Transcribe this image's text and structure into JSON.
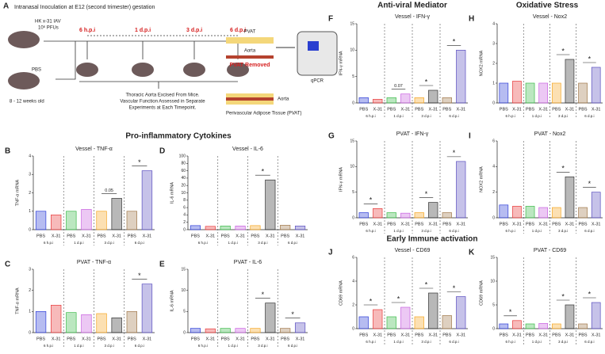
{
  "panel_a": {
    "letter": "A",
    "intro": "Intranasal Inoculation at E12 (second trimester) gestation",
    "virus": "HK x-31 IAV",
    "dose": "10⁶ PFUs",
    "control": "PBS",
    "age": "8 - 12 weeks old",
    "timepoints": [
      "6 h.p.i",
      "1 d.p.i",
      "3 d.p.i",
      "6 d.p.i"
    ],
    "method": [
      "Thoracic Aorta Excised From Mice.",
      "Vascular Function Assessed in Separate",
      "Experiments at Each Timepoint."
    ],
    "tissue_pvat": "PVAT",
    "tissue_aorta": "Aorta",
    "pvat_removed": "PVAT Removed",
    "assay": "qPCR",
    "aorta_label": "Aorta",
    "pvat_label": "Perivascular Adipose Tissue (PVAT)"
  },
  "section_headers": [
    "Pro-inflammatory Cytokines",
    "Anti-viral Mediator",
    "Oxidative Stress",
    "Early Immune activation"
  ],
  "chart_data": [
    {
      "type": "bar",
      "panel": "B",
      "title": "Vessel - TNF-α",
      "ylabel": "TNF-α mRNA",
      "categories": [
        "PBS",
        "X-31",
        "PBS",
        "X-31",
        "PBS",
        "X-31",
        "PBS",
        "X-31"
      ],
      "groups": [
        "6 h.p.i",
        "1 d.p.i",
        "3 d.p.i",
        "6 d.p.i"
      ],
      "values": [
        1.0,
        0.8,
        1.0,
        1.1,
        1.0,
        1.7,
        1.0,
        3.2
      ],
      "colors": [
        "#2f3fd8",
        "#e8393a",
        "#3dbb4a",
        "#c860e0",
        "#f5a623",
        "#333333",
        "#a0784a",
        "#5b4fc0"
      ],
      "ylim": [
        0,
        4
      ],
      "yticks": [
        0,
        1,
        2,
        3,
        4
      ],
      "annotations": [
        {
          "text": "0.05",
          "group": "3 d.p.i"
        },
        {
          "text": "*",
          "group": "6 d.p.i"
        }
      ]
    },
    {
      "type": "bar",
      "panel": "D",
      "title": "Vessel - IL-6",
      "ylabel": "IL-6 mRNA",
      "categories": [
        "PBS",
        "X-31",
        "PBS",
        "X-31",
        "PBS",
        "X-31",
        "PBS",
        "X-31"
      ],
      "groups": [
        "6 h.p.i",
        "1 d.p.i",
        "3 d.p.i",
        "6 d.p.i"
      ],
      "values": [
        1.1,
        0.9,
        1.0,
        1.0,
        1.1,
        35,
        1.2,
        1.0
      ],
      "colors": [
        "#2f3fd8",
        "#e8393a",
        "#3dbb4a",
        "#c860e0",
        "#f5a623",
        "#333333",
        "#a0784a",
        "#5b4fc0"
      ],
      "ylim": [
        0,
        100
      ],
      "yticks": [
        0,
        2,
        4,
        6,
        8,
        10,
        20,
        40,
        60,
        80,
        100
      ],
      "annotations": [
        {
          "text": "*",
          "group": "3 d.p.i"
        }
      ]
    },
    {
      "type": "bar",
      "panel": "C",
      "title": "PVAT - TNF-α",
      "ylabel": "TNF-α mRNA",
      "categories": [
        "PBS",
        "X-31",
        "PBS",
        "X-31",
        "PBS",
        "X-31",
        "PBS",
        "X-31"
      ],
      "groups": [
        "6 h.p.i",
        "1 d.p.i",
        "3 d.p.i",
        "6 d.p.i"
      ],
      "values": [
        1.0,
        1.3,
        0.95,
        0.85,
        0.9,
        0.7,
        1.0,
        2.3
      ],
      "colors": [
        "#2f3fd8",
        "#e8393a",
        "#3dbb4a",
        "#c860e0",
        "#f5a623",
        "#333333",
        "#a0784a",
        "#5b4fc0"
      ],
      "ylim": [
        0,
        3
      ],
      "yticks": [
        0,
        1,
        2,
        3
      ],
      "annotations": [
        {
          "text": "*",
          "group": "6 d.p.i"
        }
      ]
    },
    {
      "type": "bar",
      "panel": "E",
      "title": "PVAT - IL-6",
      "ylabel": "IL-6 mRNA",
      "categories": [
        "PBS",
        "X-31",
        "PBS",
        "X-31",
        "PBS",
        "X-31",
        "PBS",
        "X-31"
      ],
      "groups": [
        "6 h.p.i",
        "1 d.p.i",
        "3 d.p.i",
        "6 d.p.i"
      ],
      "values": [
        1.0,
        0.9,
        1.0,
        1.0,
        1.0,
        7.0,
        1.0,
        2.3
      ],
      "colors": [
        "#2f3fd8",
        "#e8393a",
        "#3dbb4a",
        "#c860e0",
        "#f5a623",
        "#333333",
        "#a0784a",
        "#5b4fc0"
      ],
      "ylim": [
        0,
        15
      ],
      "yticks": [
        0,
        5,
        10,
        15
      ],
      "annotations": [
        {
          "text": "*",
          "group": "3 d.p.i"
        },
        {
          "text": "*",
          "group": "6 d.p.i"
        }
      ]
    },
    {
      "type": "bar",
      "panel": "F",
      "title": "Vessel - IFN-γ",
      "ylabel": "IFN-γ mRNA",
      "categories": [
        "PBS",
        "X-31",
        "PBS",
        "X-31",
        "PBS",
        "X-31",
        "PBS",
        "X-31"
      ],
      "groups": [
        "6 h.p.i",
        "1 d.p.i",
        "3 d.p.i",
        "6 d.p.i"
      ],
      "values": [
        1.0,
        0.7,
        1.0,
        1.7,
        1.0,
        2.4,
        1.0,
        10
      ],
      "colors": [
        "#2f3fd8",
        "#e8393a",
        "#3dbb4a",
        "#c860e0",
        "#f5a623",
        "#333333",
        "#a0784a",
        "#5b4fc0"
      ],
      "ylim": [
        0,
        15
      ],
      "yticks": [
        0,
        5,
        10,
        15
      ],
      "annotations": [
        {
          "text": "0.07",
          "group": "1 d.p.i"
        },
        {
          "text": "*",
          "group": "3 d.p.i"
        },
        {
          "text": "*",
          "group": "6 d.p.i"
        }
      ]
    },
    {
      "type": "bar",
      "panel": "H",
      "title": "Vessel - Nox2",
      "ylabel": "NOX2 mRNA",
      "categories": [
        "PBS",
        "X-31",
        "PBS",
        "X-31",
        "PBS",
        "X-31",
        "PBS",
        "X-31"
      ],
      "groups": [
        "6 h.p.i",
        "1 d.p.i",
        "3 d.p.i",
        "6 d.p.i"
      ],
      "values": [
        1.0,
        1.1,
        1.0,
        1.0,
        1.0,
        2.2,
        1.0,
        1.8
      ],
      "colors": [
        "#2f3fd8",
        "#e8393a",
        "#3dbb4a",
        "#c860e0",
        "#f5a623",
        "#333333",
        "#a0784a",
        "#5b4fc0"
      ],
      "ylim": [
        0,
        4
      ],
      "yticks": [
        0,
        1,
        2,
        3,
        4
      ],
      "annotations": [
        {
          "text": "*",
          "group": "3 d.p.i"
        },
        {
          "text": "*",
          "group": "6 d.p.i"
        }
      ]
    },
    {
      "type": "bar",
      "panel": "G",
      "title": "PVAT - IFN-γ",
      "ylabel": "IFN-γ mRNA",
      "categories": [
        "PBS",
        "X-31",
        "PBS",
        "X-31",
        "PBS",
        "X-31",
        "PBS",
        "X-31"
      ],
      "groups": [
        "6 h.p.i",
        "1 d.p.i",
        "3 d.p.i",
        "6 d.p.i"
      ],
      "values": [
        1.0,
        1.8,
        1.0,
        0.9,
        1.0,
        3.0,
        1.0,
        11
      ],
      "colors": [
        "#2f3fd8",
        "#e8393a",
        "#3dbb4a",
        "#c860e0",
        "#f5a623",
        "#333333",
        "#a0784a",
        "#5b4fc0"
      ],
      "ylim": [
        0,
        15
      ],
      "yticks": [
        0,
        5,
        10,
        15
      ],
      "annotations": [
        {
          "text": "*",
          "group": "6 h.p.i"
        },
        {
          "text": "*",
          "group": "3 d.p.i"
        },
        {
          "text": "*",
          "group": "6 d.p.i"
        }
      ]
    },
    {
      "type": "bar",
      "panel": "I",
      "title": "PVAT - Nox2",
      "ylabel": "NOX2 mRNA",
      "categories": [
        "PBS",
        "X-31",
        "PBS",
        "X-31",
        "PBS",
        "X-31",
        "PBS",
        "X-31"
      ],
      "groups": [
        "6 h.p.i",
        "1 d.p.i",
        "3 d.p.i",
        "6 d.p.i"
      ],
      "values": [
        1.0,
        0.9,
        0.9,
        0.8,
        0.8,
        3.2,
        0.8,
        2.0
      ],
      "colors": [
        "#2f3fd8",
        "#e8393a",
        "#3dbb4a",
        "#c860e0",
        "#f5a623",
        "#333333",
        "#a0784a",
        "#5b4fc0"
      ],
      "ylim": [
        0,
        6
      ],
      "yticks": [
        0,
        2,
        4,
        6
      ],
      "annotations": [
        {
          "text": "*",
          "group": "3 d.p.i"
        },
        {
          "text": "*",
          "group": "6 d.p.i"
        }
      ]
    },
    {
      "type": "bar",
      "panel": "J",
      "title": "Vessel - CD69",
      "ylabel": "CD69 mRNA",
      "categories": [
        "PBS",
        "X-31",
        "PBS",
        "X-31",
        "PBS",
        "X-31",
        "PBS",
        "X-31"
      ],
      "groups": [
        "6 h.p.i",
        "1 d.p.i",
        "3 d.p.i",
        "6 d.p.i"
      ],
      "values": [
        1.0,
        1.6,
        1.0,
        1.8,
        1.0,
        3.0,
        1.1,
        2.7
      ],
      "colors": [
        "#2f3fd8",
        "#e8393a",
        "#3dbb4a",
        "#c860e0",
        "#f5a623",
        "#333333",
        "#a0784a",
        "#5b4fc0"
      ],
      "ylim": [
        0,
        6
      ],
      "yticks": [
        0,
        2,
        4,
        6
      ],
      "annotations": [
        {
          "text": "*",
          "group": "6 h.p.i"
        },
        {
          "text": "*",
          "group": "1 d.p.i"
        },
        {
          "text": "*",
          "group": "3 d.p.i"
        },
        {
          "text": "*",
          "group": "6 d.p.i"
        }
      ]
    },
    {
      "type": "bar",
      "panel": "K",
      "title": "PVAT - CD69",
      "ylabel": "CD69 mRNA",
      "categories": [
        "PBS",
        "X-31",
        "PBS",
        "X-31",
        "PBS",
        "X-31",
        "PBS",
        "X-31"
      ],
      "groups": [
        "6 h.p.i",
        "1 d.p.i",
        "3 d.p.i",
        "6 d.p.i"
      ],
      "values": [
        1.0,
        1.7,
        1.0,
        1.1,
        1.0,
        5.0,
        1.0,
        5.5
      ],
      "colors": [
        "#2f3fd8",
        "#e8393a",
        "#3dbb4a",
        "#c860e0",
        "#f5a623",
        "#333333",
        "#a0784a",
        "#5b4fc0"
      ],
      "ylim": [
        0,
        15
      ],
      "yticks": [
        0,
        5,
        10,
        15
      ],
      "annotations": [
        {
          "text": "*",
          "group": "6 h.p.i"
        },
        {
          "text": "*",
          "group": "3 d.p.i"
        },
        {
          "text": "*",
          "group": "6 d.p.i"
        }
      ]
    }
  ]
}
